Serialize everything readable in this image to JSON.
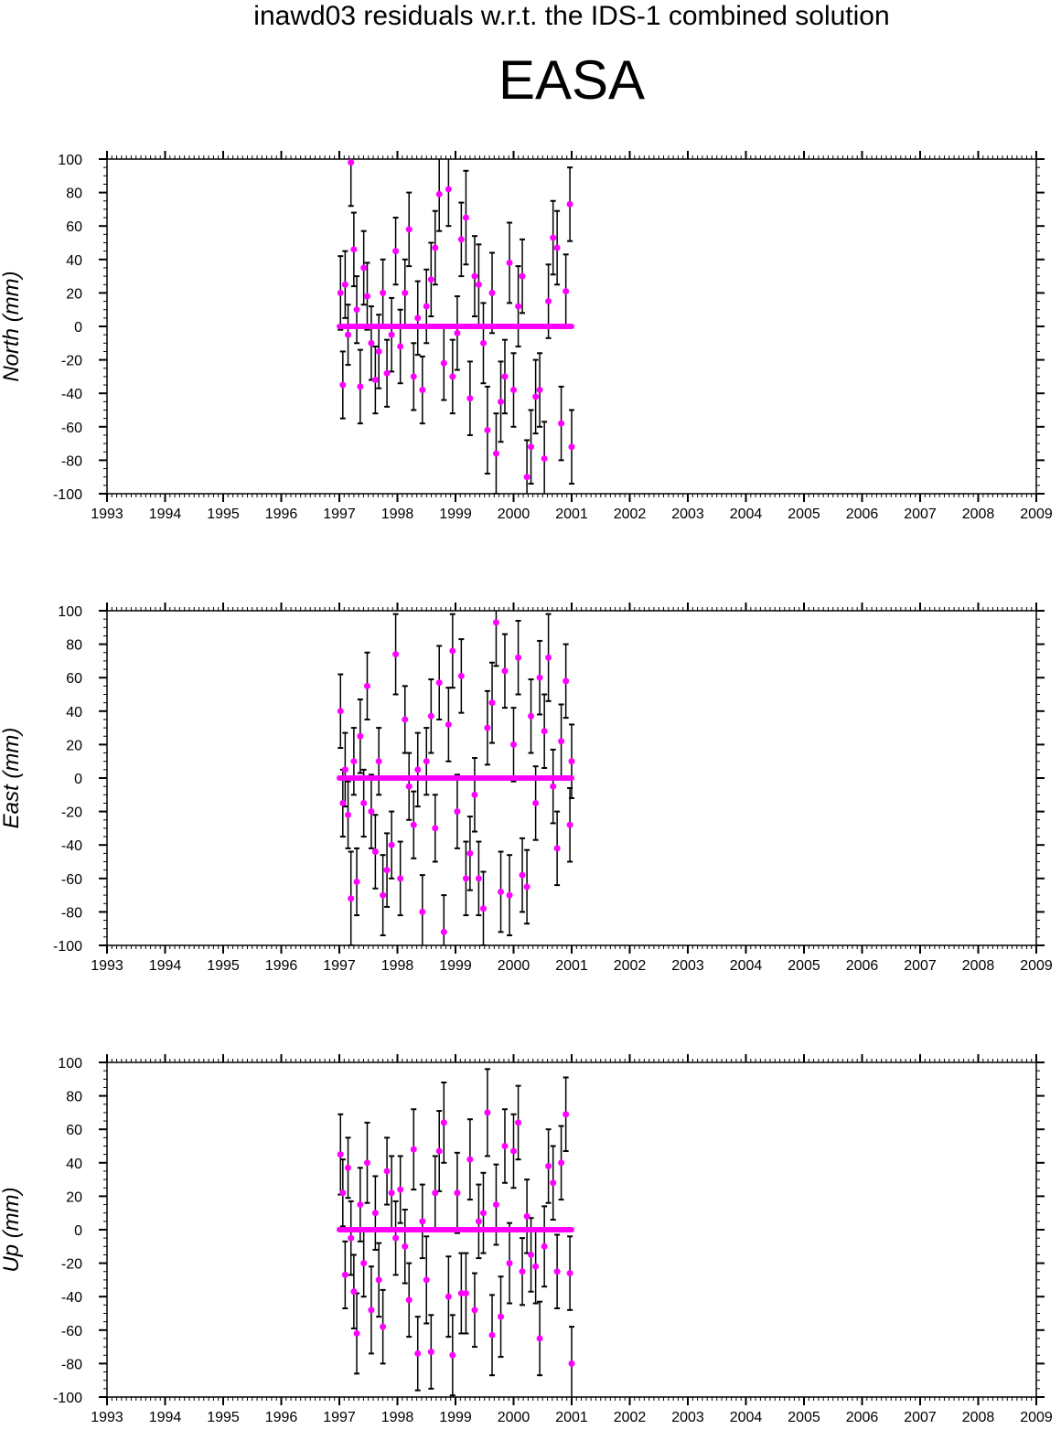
{
  "suptitle": "inawd03 residuals w.r.t. the IDS-1 combined solution",
  "station": "EASA",
  "colors": {
    "marker": "#ff00ff",
    "errorbar": "#000000",
    "axis": "#000000"
  },
  "chart_data": [
    {
      "type": "scatter",
      "ylabel": "North (mm)",
      "xlim": [
        1993,
        2009
      ],
      "ylim": [
        -100,
        100
      ],
      "xticks": [
        "1993",
        "1994",
        "1995",
        "1996",
        "1997",
        "1998",
        "1999",
        "2000",
        "2001",
        "2002",
        "2003",
        "2004",
        "2005",
        "2006",
        "2007",
        "2008",
        "2009"
      ],
      "yticks": [
        "100",
        "80",
        "60",
        "40",
        "20",
        "0",
        "-20",
        "-40",
        "-60",
        "-80",
        "-100"
      ],
      "x": [
        1997.02,
        1997.06,
        1997.1,
        1997.15,
        1997.2,
        1997.25,
        1997.3,
        1997.36,
        1997.42,
        1997.48,
        1997.55,
        1997.62,
        1997.68,
        1997.75,
        1997.82,
        1997.9,
        1997.97,
        1998.05,
        1998.13,
        1998.2,
        1998.28,
        1998.35,
        1998.43,
        1998.5,
        1998.58,
        1998.65,
        1998.72,
        1998.8,
        1998.88,
        1998.95,
        1999.03,
        1999.1,
        1999.18,
        1999.25,
        1999.33,
        1999.4,
        1999.48,
        1999.55,
        1999.63,
        1999.7,
        1999.78,
        1999.85,
        1999.93,
        2000.0,
        2000.08,
        2000.15,
        2000.23,
        2000.3,
        2000.38,
        2000.45,
        2000.53,
        2000.6,
        2000.68,
        2000.75,
        2000.82,
        2000.9,
        2000.97,
        2001.0
      ],
      "y": [
        20,
        -35,
        25,
        -5,
        98,
        46,
        10,
        -36,
        35,
        18,
        -10,
        -32,
        -15,
        20,
        -28,
        -5,
        45,
        -12,
        20,
        58,
        -30,
        5,
        -38,
        12,
        28,
        47,
        79,
        -22,
        82,
        -30,
        -4,
        52,
        65,
        -43,
        30,
        25,
        -10,
        -62,
        20,
        -76,
        -45,
        -30,
        38,
        -38,
        12,
        30,
        -90,
        -72,
        -42,
        -38,
        -79,
        15,
        53,
        47,
        -58,
        21,
        73,
        -72
      ],
      "err": [
        22,
        20,
        20,
        18,
        26,
        22,
        20,
        22,
        22,
        20,
        22,
        20,
        22,
        20,
        20,
        22,
        20,
        22,
        20,
        22,
        20,
        22,
        20,
        22,
        22,
        22,
        22,
        22,
        22,
        22,
        22,
        22,
        28,
        22,
        24,
        24,
        24,
        26,
        24,
        24,
        24,
        22,
        24,
        22,
        24,
        22,
        22,
        22,
        22,
        22,
        22,
        22,
        22,
        22,
        22,
        22,
        22,
        22
      ],
      "baseline": [
        1997.0,
        2001.0
      ]
    },
    {
      "type": "scatter",
      "ylabel": "East (mm)",
      "xlim": [
        1993,
        2009
      ],
      "ylim": [
        -100,
        100
      ],
      "xticks": [
        "1993",
        "1994",
        "1995",
        "1996",
        "1997",
        "1998",
        "1999",
        "2000",
        "2001",
        "2002",
        "2003",
        "2004",
        "2005",
        "2006",
        "2007",
        "2008",
        "2009"
      ],
      "yticks": [
        "100",
        "80",
        "60",
        "40",
        "20",
        "0",
        "-20",
        "-40",
        "-60",
        "-80",
        "-100"
      ],
      "x": [
        1997.02,
        1997.06,
        1997.1,
        1997.15,
        1997.2,
        1997.25,
        1997.3,
        1997.36,
        1997.42,
        1997.48,
        1997.55,
        1997.62,
        1997.68,
        1997.75,
        1997.82,
        1997.9,
        1997.97,
        1998.05,
        1998.13,
        1998.2,
        1998.28,
        1998.35,
        1998.43,
        1998.5,
        1998.58,
        1998.65,
        1998.72,
        1998.8,
        1998.88,
        1998.95,
        1999.03,
        1999.1,
        1999.18,
        1999.25,
        1999.33,
        1999.4,
        1999.48,
        1999.55,
        1999.63,
        1999.7,
        1999.78,
        1999.85,
        1999.93,
        2000.0,
        2000.08,
        2000.15,
        2000.23,
        2000.3,
        2000.38,
        2000.45,
        2000.53,
        2000.6,
        2000.68,
        2000.75,
        2000.82,
        2000.9,
        2000.97,
        2001.0
      ],
      "y": [
        40,
        -15,
        5,
        -22,
        -72,
        10,
        -62,
        25,
        -15,
        55,
        -20,
        -44,
        10,
        -70,
        -55,
        -40,
        74,
        -60,
        35,
        -5,
        -28,
        5,
        -80,
        10,
        37,
        -30,
        57,
        -92,
        32,
        76,
        -20,
        61,
        -60,
        -45,
        -10,
        -60,
        -78,
        30,
        45,
        93,
        -68,
        64,
        -70,
        20,
        72,
        -58,
        -65,
        37,
        -15,
        60,
        28,
        72,
        -5,
        -42,
        22,
        58,
        -28,
        10
      ],
      "err": [
        22,
        20,
        22,
        20,
        28,
        20,
        20,
        22,
        20,
        20,
        22,
        22,
        20,
        24,
        22,
        20,
        24,
        22,
        20,
        20,
        20,
        22,
        22,
        20,
        22,
        20,
        22,
        22,
        22,
        22,
        22,
        22,
        22,
        22,
        22,
        22,
        22,
        22,
        24,
        26,
        24,
        22,
        24,
        22,
        22,
        22,
        22,
        22,
        22,
        22,
        22,
        26,
        22,
        22,
        22,
        22,
        22,
        22
      ],
      "baseline": [
        1997.0,
        2001.0
      ]
    },
    {
      "type": "scatter",
      "ylabel": "Up (mm)",
      "xlim": [
        1993,
        2009
      ],
      "ylim": [
        -100,
        100
      ],
      "xticks": [
        "1993",
        "1994",
        "1995",
        "1996",
        "1997",
        "1998",
        "1999",
        "2000",
        "2001",
        "2002",
        "2003",
        "2004",
        "2005",
        "2006",
        "2007",
        "2008",
        "2009"
      ],
      "yticks": [
        "100",
        "80",
        "60",
        "40",
        "20",
        "0",
        "-20",
        "-40",
        "-60",
        "-80",
        "-100"
      ],
      "x": [
        1997.02,
        1997.06,
        1997.1,
        1997.15,
        1997.2,
        1997.25,
        1997.3,
        1997.36,
        1997.42,
        1997.48,
        1997.55,
        1997.62,
        1997.68,
        1997.75,
        1997.82,
        1997.9,
        1997.97,
        1998.05,
        1998.13,
        1998.2,
        1998.28,
        1998.35,
        1998.43,
        1998.5,
        1998.58,
        1998.65,
        1998.72,
        1998.8,
        1998.88,
        1998.95,
        1999.03,
        1999.1,
        1999.18,
        1999.25,
        1999.33,
        1999.4,
        1999.48,
        1999.55,
        1999.63,
        1999.7,
        1999.78,
        1999.85,
        1999.93,
        2000.0,
        2000.08,
        2000.15,
        2000.23,
        2000.3,
        2000.38,
        2000.45,
        2000.53,
        2000.6,
        2000.68,
        2000.75,
        2000.82,
        2000.9,
        2000.97,
        2001.0
      ],
      "y": [
        45,
        22,
        -27,
        37,
        -5,
        -37,
        -62,
        15,
        -20,
        40,
        -48,
        10,
        -30,
        -58,
        35,
        22,
        -5,
        24,
        -10,
        -42,
        48,
        -74,
        5,
        -30,
        -73,
        22,
        47,
        64,
        -40,
        -75,
        22,
        -38,
        -38,
        42,
        -48,
        5,
        10,
        70,
        -63,
        15,
        -52,
        50,
        -20,
        47,
        64,
        -25,
        8,
        -15,
        -22,
        -65,
        -10,
        38,
        28,
        -25,
        40,
        69,
        -26,
        -80
      ],
      "err": [
        24,
        20,
        20,
        18,
        22,
        22,
        24,
        22,
        20,
        24,
        26,
        22,
        22,
        22,
        20,
        22,
        22,
        20,
        22,
        22,
        24,
        22,
        22,
        26,
        22,
        22,
        24,
        24,
        24,
        24,
        24,
        24,
        24,
        24,
        22,
        22,
        24,
        26,
        24,
        24,
        24,
        22,
        24,
        22,
        22,
        20,
        22,
        22,
        22,
        22,
        24,
        22,
        22,
        22,
        22,
        22,
        22,
        22
      ],
      "baseline": [
        1997.0,
        2001.0
      ]
    }
  ]
}
